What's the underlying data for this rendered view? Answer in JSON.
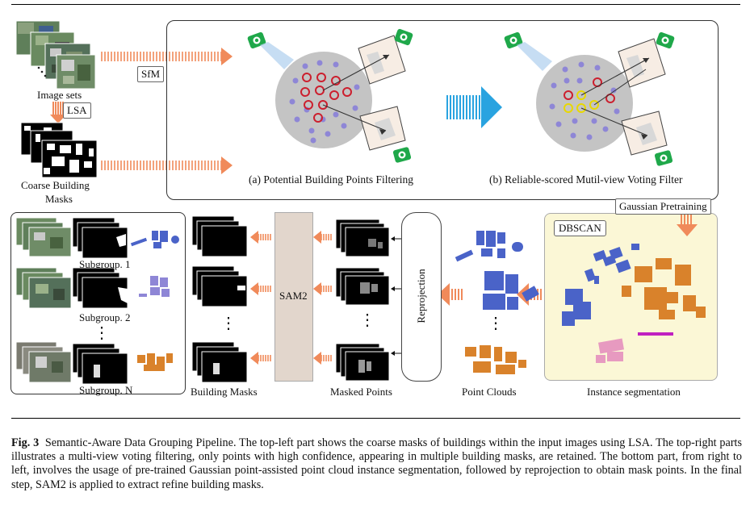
{
  "labels": {
    "image_sets": "Image sets",
    "lsa": "LSA",
    "coarse_masks_line1": "Coarse Building",
    "coarse_masks_line2": "Masks",
    "sfm": "SfM",
    "panel_a": "(a) Potential Building Points Filtering",
    "panel_b": "(b) Reliable-scored Mutil-view Voting Filter",
    "gaussian_pretraining": "Gaussian Pretraining",
    "dbscan": "DBSCAN",
    "instance_segmentation": "Instance segmentation",
    "point_clouds": "Point Clouds",
    "reprojection": "Reprojection",
    "masked_points": "Masked Points",
    "sam2": "SAM2",
    "building_masks": "Building Masks",
    "subgroup_1": "Subgroup. 1",
    "subgroup_2": "Subgroup. 2",
    "subgroup_n": "Subgroup. N",
    "vdots": "⋮"
  },
  "caption": {
    "fig": "Fig. 3",
    "text": "Semantic-Aware Data Grouping Pipeline. The top-left part shows the coarse masks of buildings within the input images using LSA. The top-right parts illustrates a multi-view voting filtering, only points with high confidence, appearing in multiple building masks, are retained. The bottom part, from right to left, involves the usage of pre-trained Gaussian point-assisted point cloud instance segmentation, followed by reprojection to obtain mask points. In the final step, SAM2 is applied to extract refine building masks."
  },
  "colors": {
    "arrow_orange": "#f08a5a",
    "arrow_blue": "#29a3e0",
    "point_red": "#cc1f2e",
    "point_yellow": "#e8d800",
    "point_purple": "#8e86d6",
    "disk_gray": "#c4c4c4",
    "camera_green": "#1fa84a",
    "dbscan_bg": "#fbf7d6",
    "sam2_bg": "#e2d6cc",
    "cloud_blue": "#4a63c8",
    "cloud_orange": "#d9822b"
  },
  "icons": [
    "camera-icon",
    "image-stack-icon",
    "mask-stack-icon",
    "point-cloud-icon"
  ]
}
